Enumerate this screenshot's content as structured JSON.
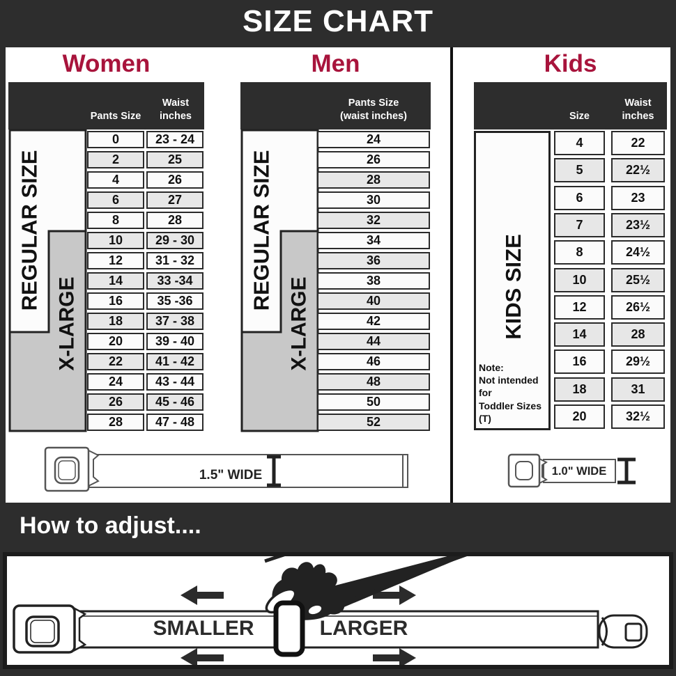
{
  "banner": {
    "title": "SIZE CHART"
  },
  "sections": {
    "women": {
      "heading": "Women",
      "col1_header": "Pants Size",
      "col2_header": "Waist inches",
      "regular_label": "REGULAR SIZE",
      "xlarge_label": "X-LARGE",
      "rows": [
        {
          "size": "0",
          "waist": "23 - 24"
        },
        {
          "size": "2",
          "waist": "25"
        },
        {
          "size": "4",
          "waist": "26"
        },
        {
          "size": "6",
          "waist": "27"
        },
        {
          "size": "8",
          "waist": "28"
        },
        {
          "size": "10",
          "waist": "29 - 30"
        },
        {
          "size": "12",
          "waist": "31 - 32"
        },
        {
          "size": "14",
          "waist": "33 -34"
        },
        {
          "size": "16",
          "waist": "35 -36"
        },
        {
          "size": "18",
          "waist": "37 - 38"
        },
        {
          "size": "20",
          "waist": "39 - 40"
        },
        {
          "size": "22",
          "waist": "41 - 42"
        },
        {
          "size": "24",
          "waist": "43 - 44"
        },
        {
          "size": "26",
          "waist": "45 - 46"
        },
        {
          "size": "28",
          "waist": "47 - 48"
        }
      ]
    },
    "men": {
      "heading": "Men",
      "col_header_line1": "Pants Size",
      "col_header_line2": "(waist inches)",
      "regular_label": "REGULAR SIZE",
      "xlarge_label": "X-LARGE",
      "rows": [
        "24",
        "26",
        "28",
        "30",
        "32",
        "34",
        "36",
        "38",
        "40",
        "42",
        "44",
        "46",
        "48",
        "50",
        "52"
      ]
    },
    "kids": {
      "heading": "Kids",
      "col1_header": "Size",
      "col2_header": "Waist inches",
      "band_label": "KIDS SIZE",
      "note_lines": [
        "Note:",
        "Not intended for",
        "Toddler Sizes (T)"
      ],
      "rows": [
        {
          "size": "4",
          "waist": "22"
        },
        {
          "size": "5",
          "waist": "22½"
        },
        {
          "size": "6",
          "waist": "23"
        },
        {
          "size": "7",
          "waist": "23½"
        },
        {
          "size": "8",
          "waist": "24½"
        },
        {
          "size": "10",
          "waist": "25½"
        },
        {
          "size": "12",
          "waist": "26½"
        },
        {
          "size": "14",
          "waist": "28"
        },
        {
          "size": "16",
          "waist": "29½"
        },
        {
          "size": "18",
          "waist": "31"
        },
        {
          "size": "20",
          "waist": "32½"
        }
      ]
    }
  },
  "belts": {
    "adult": {
      "width_label": "1.5\" WIDE"
    },
    "kids": {
      "width_label": "1.0\" WIDE"
    }
  },
  "how_to": {
    "heading": "How to adjust....",
    "smaller_label": "SMALLER",
    "larger_label": "LARGER"
  },
  "colors": {
    "accent_red": "#a8143c",
    "dark": "#2d2d2d",
    "band_gray": "#c8c8c8"
  }
}
